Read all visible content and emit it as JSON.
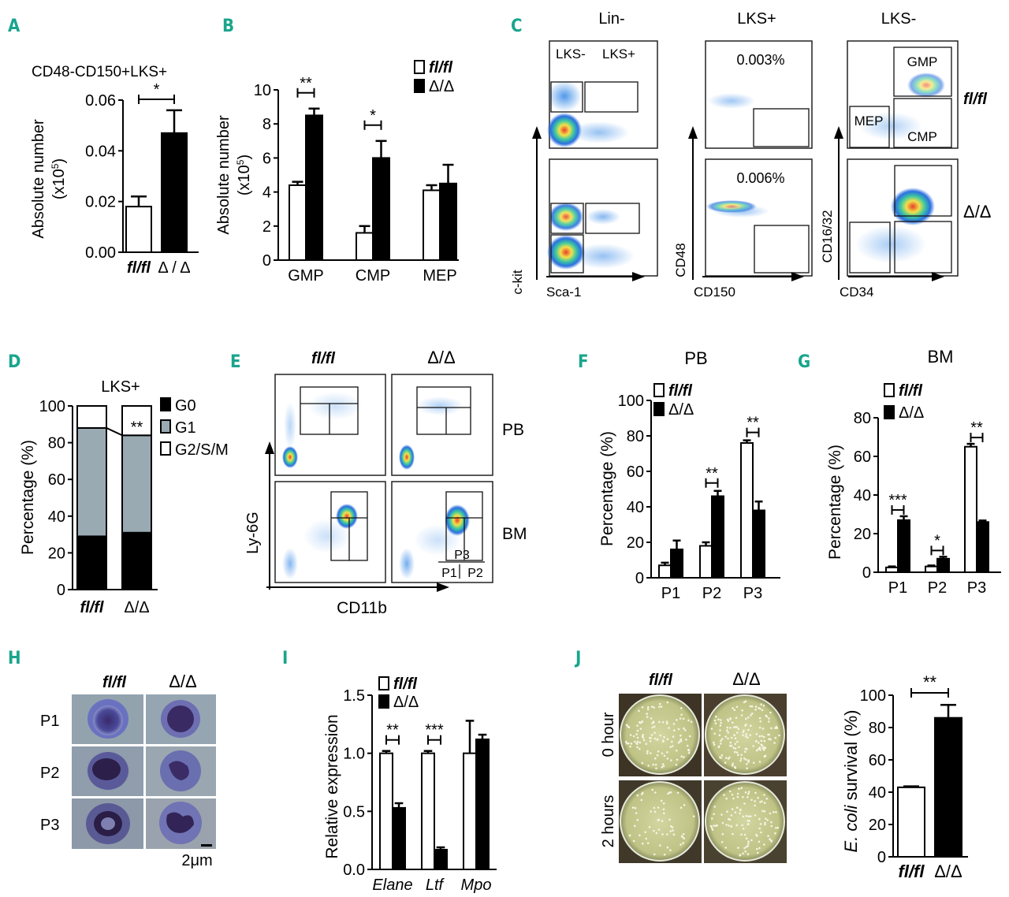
{
  "panel_labels": {
    "A": "A",
    "B": "B",
    "C": "C",
    "D": "D",
    "E": "E",
    "F": "F",
    "G": "G",
    "H": "H",
    "I": "I",
    "J": "J"
  },
  "genotypes": {
    "flfl": "fl/fl",
    "dd": "Δ/Δ",
    "dd_spaced": "Δ / Δ"
  },
  "colors": {
    "panel_label": "#19a58d",
    "dark": "#000000",
    "g1": "#9aaab3"
  },
  "chart_data": [
    {
      "id": "A",
      "type": "bar",
      "title": "CD48-CD150+LKS+",
      "ylabel_line1": "Absolute number",
      "ylabel_line2": "(x10",
      "ylabel_sup": "5",
      "ylabel_close": ")",
      "categories": [
        "fl/fl",
        "Δ / Δ"
      ],
      "values": [
        0.018,
        0.047
      ],
      "errors": [
        0.004,
        0.009
      ],
      "ylim": [
        0,
        0.06
      ],
      "yticks": [
        "0.00",
        "0.02",
        "0.04",
        "0.06"
      ],
      "significance": "*"
    },
    {
      "id": "B",
      "type": "bar",
      "ylabel_line1": "Absolute number",
      "ylabel_line2": "(x10",
      "ylabel_sup": "5",
      "ylabel_close": ")",
      "categories": [
        "GMP",
        "CMP",
        "MEP"
      ],
      "series": [
        {
          "name": "fl/fl",
          "values": [
            4.4,
            1.6,
            4.1
          ],
          "errors": [
            0.2,
            0.4,
            0.3
          ]
        },
        {
          "name": "Δ/Δ",
          "values": [
            8.5,
            6.0,
            4.5
          ],
          "errors": [
            0.4,
            1.0,
            1.1
          ]
        }
      ],
      "ylim": [
        0,
        10
      ],
      "yticks": [
        "0",
        "2",
        "4",
        "6",
        "8",
        "10"
      ],
      "significance": [
        "**",
        "*",
        ""
      ]
    },
    {
      "id": "C",
      "type": "scatter",
      "column_titles": [
        "Lin-",
        "LKS+",
        "LKS-"
      ],
      "gates": [
        "LKS-",
        "LKS+"
      ],
      "percentages": [
        "0.003%",
        "0.006%"
      ],
      "subsets": [
        "GMP",
        "MEP",
        "CMP"
      ],
      "row_labels": [
        "fl/fl",
        "Δ/Δ"
      ],
      "axes": {
        "x1": "Sca-1",
        "y1": "c-kit",
        "x2": "CD150",
        "y2": "CD48",
        "x3": "CD34",
        "y3": "CD16/32"
      }
    },
    {
      "id": "D",
      "type": "bar",
      "title": "LKS+",
      "ylabel": "Percentage (%)",
      "categories": [
        "fl/fl",
        "Δ/Δ"
      ],
      "series": [
        {
          "name": "G0",
          "values": [
            29,
            31
          ]
        },
        {
          "name": "G1",
          "values": [
            59,
            53
          ]
        },
        {
          "name": "G2/S/M",
          "values": [
            12,
            16
          ]
        }
      ],
      "ylim": [
        0,
        100
      ],
      "yticks": [
        "0",
        "20",
        "40",
        "60",
        "80",
        "100"
      ],
      "significance": "**"
    },
    {
      "id": "E",
      "type": "scatter",
      "column_titles": [
        "fl/fl",
        "Δ/Δ"
      ],
      "row_labels": [
        "PB",
        "BM"
      ],
      "gates": [
        "P3",
        "P1",
        "P2"
      ],
      "xlabel": "CD11b",
      "ylabel": "Ly-6G"
    },
    {
      "id": "F",
      "type": "bar",
      "title": "PB",
      "ylabel": "Percentage (%)",
      "categories": [
        "P1",
        "P2",
        "P3"
      ],
      "series": [
        {
          "name": "fl/fl",
          "values": [
            7,
            18,
            76
          ],
          "errors": [
            1.5,
            2,
            1.5
          ]
        },
        {
          "name": "Δ/Δ",
          "values": [
            16,
            46,
            38
          ],
          "errors": [
            5,
            3,
            5
          ]
        }
      ],
      "ylim": [
        0,
        100
      ],
      "yticks": [
        "0",
        "20",
        "40",
        "60",
        "80",
        "100"
      ],
      "significance": [
        "",
        "**",
        "**"
      ]
    },
    {
      "id": "G",
      "type": "bar",
      "title": "BM",
      "ylabel": "Percentage (%)",
      "categories": [
        "P1",
        "P2",
        "P3"
      ],
      "series": [
        {
          "name": "fl/fl",
          "values": [
            2.5,
            3,
            65
          ],
          "errors": [
            0.5,
            0.5,
            1.5
          ]
        },
        {
          "name": "Δ/Δ",
          "values": [
            27,
            7,
            26
          ],
          "errors": [
            2,
            1,
            0.8
          ]
        }
      ],
      "ylim": [
        0,
        80
      ],
      "yticks": [
        "0",
        "20",
        "40",
        "60",
        "80"
      ],
      "significance": [
        "***",
        "*",
        "**"
      ]
    },
    {
      "id": "H",
      "type": "image",
      "column_titles": [
        "fl/fl",
        "Δ/Δ"
      ],
      "row_labels": [
        "P1",
        "P2",
        "P3"
      ],
      "scale_bar": "2μm"
    },
    {
      "id": "I",
      "type": "bar",
      "ylabel": "Relative expression",
      "categories": [
        "Elane",
        "Ltf",
        "Mpo"
      ],
      "series": [
        {
          "name": "fl/fl",
          "values": [
            1.0,
            1.0,
            1.0
          ],
          "errors": [
            0.02,
            0.02,
            0.28
          ]
        },
        {
          "name": "Δ/Δ",
          "values": [
            0.53,
            0.17,
            1.12
          ],
          "errors": [
            0.04,
            0.02,
            0.04
          ]
        }
      ],
      "ylim": [
        0,
        1.5
      ],
      "yticks": [
        "0.0",
        "0.5",
        "1.0",
        "1.5"
      ],
      "significance": [
        "**",
        "***",
        ""
      ]
    },
    {
      "id": "J",
      "type": "bar",
      "column_titles": [
        "fl/fl",
        "Δ/Δ"
      ],
      "row_labels": [
        "0 hour",
        "2 hours"
      ],
      "ylabel_italic": "E. coli",
      "ylabel_rest": " survival (%)",
      "categories": [
        "fl/fl",
        "Δ/Δ"
      ],
      "values": [
        43,
        86
      ],
      "errors": [
        0.6,
        8
      ],
      "ylim": [
        0,
        100
      ],
      "yticks": [
        "0",
        "20",
        "40",
        "60",
        "80",
        "100"
      ],
      "significance": "**"
    }
  ]
}
